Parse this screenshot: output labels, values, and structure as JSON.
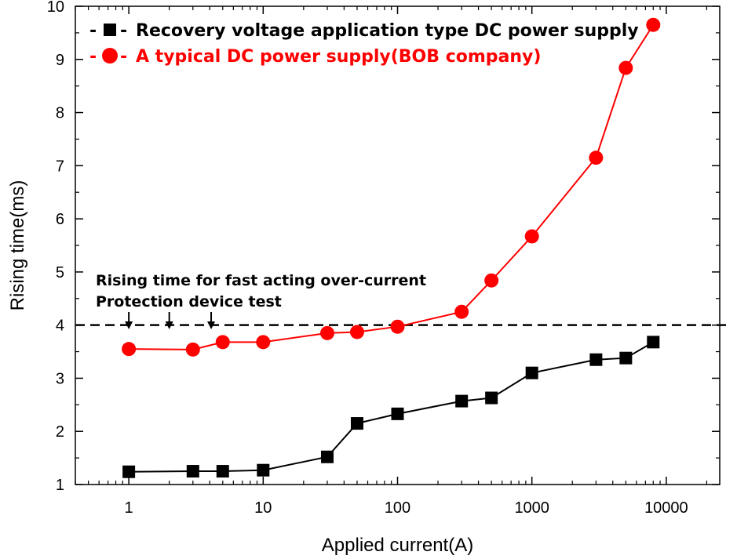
{
  "chart_data": {
    "type": "line",
    "xscale": "log",
    "xlim": [
      0.4,
      25000
    ],
    "ylim": [
      1,
      10
    ],
    "xlabel": "Applied current(A)",
    "ylabel": "Rising time(ms)",
    "x_ticks": [
      {
        "value": 1,
        "label": "1"
      },
      {
        "value": 10,
        "label": "10"
      },
      {
        "value": 100,
        "label": "100"
      },
      {
        "value": 1000,
        "label": "1000"
      },
      {
        "value": 10000,
        "label": "10000"
      }
    ],
    "y_ticks": [
      {
        "value": 1,
        "label": "1"
      },
      {
        "value": 2,
        "label": "2"
      },
      {
        "value": 3,
        "label": "3"
      },
      {
        "value": 4,
        "label": "4"
      },
      {
        "value": 5,
        "label": "5"
      },
      {
        "value": 6,
        "label": "6"
      },
      {
        "value": 7,
        "label": "7"
      },
      {
        "value": 8,
        "label": "8"
      },
      {
        "value": 9,
        "label": "9"
      },
      {
        "value": 10,
        "label": "10"
      }
    ],
    "series": [
      {
        "name": "Recovery voltage application type DC power supply",
        "color": "#000000",
        "marker": "square",
        "x": [
          1,
          3,
          5,
          10,
          30,
          50,
          100,
          300,
          500,
          1000,
          3000,
          5000,
          8000
        ],
        "y": [
          1.24,
          1.25,
          1.25,
          1.27,
          1.52,
          2.15,
          2.33,
          2.57,
          2.63,
          3.1,
          3.35,
          3.38,
          3.68
        ]
      },
      {
        "name": "A typical DC power supply(BOB company)",
        "color": "#ff0000",
        "marker": "circle",
        "x": [
          1,
          3,
          5,
          10,
          30,
          50,
          100,
          300,
          500,
          1000,
          3000,
          5000,
          8000
        ],
        "y": [
          3.55,
          3.54,
          3.68,
          3.68,
          3.85,
          3.87,
          3.97,
          4.25,
          4.84,
          5.67,
          7.15,
          8.84,
          9.65
        ]
      }
    ],
    "reference_line": {
      "y": 4,
      "style": "dashed",
      "color": "#000000"
    },
    "annotation": {
      "lines": [
        "Rising time for fast acting over-current",
        "Protection device test"
      ],
      "arrow_x": [
        1,
        2,
        4.1
      ]
    },
    "legend": {
      "position": "top-left",
      "marker_prefix": "-",
      "marker_suffix": "-"
    },
    "grid": false
  }
}
